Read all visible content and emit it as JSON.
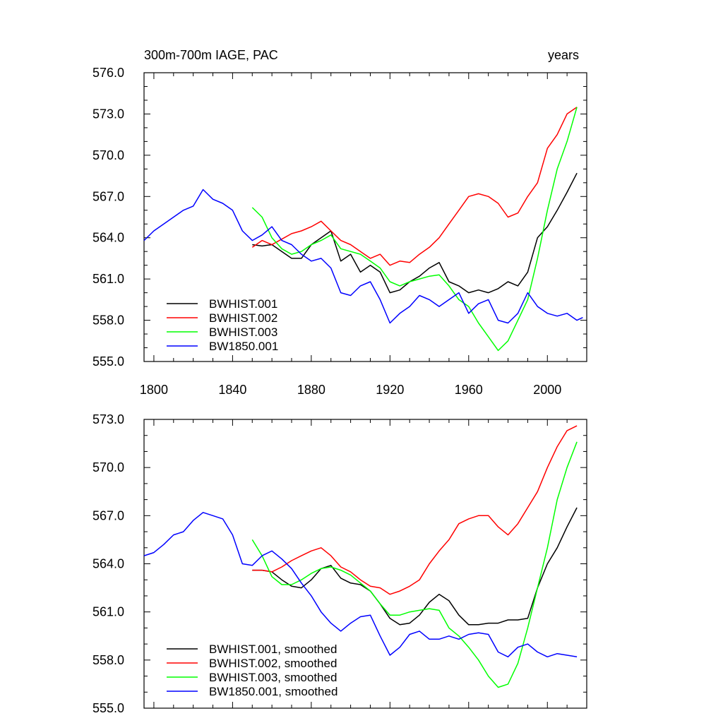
{
  "chart_data": [
    {
      "type": "line",
      "title": "300m-700m IAGE, PAC",
      "units_label": "years",
      "xlim": [
        1795,
        2020
      ],
      "ylim": [
        555.0,
        576.0
      ],
      "x_ticks": [
        1800,
        1840,
        1880,
        1920,
        1960,
        2000
      ],
      "x_tick_labels": [
        "1800",
        "1840",
        "1880",
        "1920",
        "1960",
        "2000"
      ],
      "y_ticks": [
        555.0,
        558.0,
        561.0,
        564.0,
        567.0,
        570.0,
        573.0,
        576.0
      ],
      "y_tick_labels": [
        "555.0",
        "558.0",
        "561.0",
        "564.0",
        "567.0",
        "570.0",
        "573.0",
        "576.0"
      ],
      "legend_position": "bottom-left",
      "series": [
        {
          "name": "BWHIST.001",
          "color": "#000000",
          "x": [
            1850,
            1855,
            1860,
            1865,
            1870,
            1875,
            1880,
            1885,
            1890,
            1895,
            1900,
            1905,
            1910,
            1915,
            1920,
            1925,
            1930,
            1935,
            1940,
            1945,
            1950,
            1955,
            1960,
            1965,
            1970,
            1975,
            1980,
            1985,
            1990,
            1995,
            2000,
            2005,
            2010,
            2015
          ],
          "y": [
            563.5,
            563.4,
            563.5,
            563.0,
            562.5,
            562.5,
            563.5,
            564.0,
            564.5,
            562.3,
            562.8,
            561.5,
            562.0,
            561.5,
            560.0,
            560.2,
            560.8,
            561.2,
            561.8,
            562.2,
            560.8,
            560.5,
            560.0,
            560.2,
            560.0,
            560.3,
            560.8,
            560.5,
            561.5,
            564.0,
            564.8,
            566.0,
            567.3,
            568.7
          ]
        },
        {
          "name": "BWHIST.002",
          "color": "#ff0000",
          "x": [
            1850,
            1855,
            1860,
            1865,
            1870,
            1875,
            1880,
            1885,
            1890,
            1895,
            1900,
            1905,
            1910,
            1915,
            1920,
            1925,
            1930,
            1935,
            1940,
            1945,
            1950,
            1955,
            1960,
            1965,
            1970,
            1975,
            1980,
            1985,
            1990,
            1995,
            2000,
            2005,
            2010,
            2015
          ],
          "y": [
            563.3,
            563.8,
            563.5,
            563.9,
            564.3,
            564.5,
            564.8,
            565.2,
            564.5,
            563.8,
            563.5,
            563.0,
            562.5,
            562.8,
            562.0,
            562.3,
            562.2,
            562.8,
            563.3,
            564.0,
            565.0,
            566.0,
            567.0,
            567.2,
            567.0,
            566.5,
            565.5,
            565.8,
            567.0,
            568.0,
            570.5,
            571.5,
            573.0,
            573.5
          ]
        },
        {
          "name": "BWHIST.003",
          "color": "#00ff00",
          "x": [
            1850,
            1855,
            1860,
            1865,
            1870,
            1875,
            1880,
            1885,
            1890,
            1895,
            1900,
            1905,
            1910,
            1915,
            1920,
            1925,
            1930,
            1935,
            1940,
            1945,
            1950,
            1955,
            1960,
            1965,
            1970,
            1975,
            1980,
            1985,
            1990,
            1995,
            2000,
            2005,
            2010,
            2015
          ],
          "y": [
            566.2,
            565.5,
            564.0,
            563.2,
            562.8,
            563.0,
            563.5,
            563.8,
            564.2,
            563.2,
            563.0,
            562.8,
            562.3,
            561.8,
            560.8,
            560.5,
            560.8,
            561.0,
            561.2,
            561.3,
            560.5,
            559.5,
            559.0,
            557.8,
            556.8,
            555.8,
            556.5,
            558.0,
            559.5,
            562.5,
            566.0,
            569.0,
            571.0,
            573.5
          ]
        },
        {
          "name": "BW1850.001",
          "color": "#0000ff",
          "x": [
            1795,
            1800,
            1805,
            1810,
            1815,
            1820,
            1825,
            1830,
            1835,
            1840,
            1845,
            1850,
            1855,
            1860,
            1865,
            1870,
            1875,
            1880,
            1885,
            1890,
            1895,
            1900,
            1905,
            1910,
            1915,
            1920,
            1925,
            1930,
            1935,
            1940,
            1945,
            1950,
            1955,
            1960,
            1965,
            1970,
            1975,
            1980,
            1985,
            1990,
            1995,
            2000,
            2005,
            2010,
            2015,
            2018
          ],
          "y": [
            563.8,
            564.5,
            565.0,
            565.5,
            566.0,
            566.3,
            567.5,
            566.8,
            566.5,
            566.0,
            564.5,
            563.8,
            564.2,
            564.8,
            563.8,
            563.5,
            562.8,
            562.3,
            562.5,
            561.8,
            560.0,
            559.8,
            560.5,
            560.8,
            559.5,
            557.8,
            558.5,
            559.0,
            559.8,
            559.5,
            559.0,
            559.5,
            560.0,
            558.5,
            559.2,
            559.5,
            558.0,
            557.8,
            558.5,
            560.0,
            559.0,
            558.5,
            558.3,
            558.5,
            558.0,
            558.2
          ]
        }
      ]
    },
    {
      "type": "line",
      "title": "",
      "xlim": [
        1795,
        2020
      ],
      "ylim": [
        555.0,
        573.0
      ],
      "x_ticks": [
        1800,
        1840,
        1880,
        1920,
        1960,
        2000
      ],
      "x_tick_labels": [],
      "y_ticks": [
        555.0,
        558.0,
        561.0,
        564.0,
        567.0,
        570.0,
        573.0
      ],
      "y_tick_labels": [
        "555.0",
        "558.0",
        "561.0",
        "564.0",
        "567.0",
        "570.0",
        "573.0"
      ],
      "legend_position": "bottom-left",
      "series": [
        {
          "name": "BWHIST.001, smoothed",
          "color": "#000000",
          "x": [
            1850,
            1855,
            1860,
            1865,
            1870,
            1875,
            1880,
            1885,
            1890,
            1895,
            1900,
            1905,
            1910,
            1915,
            1920,
            1925,
            1930,
            1935,
            1940,
            1945,
            1950,
            1955,
            1960,
            1965,
            1970,
            1975,
            1980,
            1985,
            1990,
            1995,
            2000,
            2005,
            2010,
            2015
          ],
          "y": [
            563.6,
            563.6,
            563.5,
            563.0,
            562.6,
            562.5,
            563.0,
            563.7,
            563.9,
            563.1,
            562.8,
            562.7,
            562.3,
            561.5,
            560.6,
            560.2,
            560.3,
            560.8,
            561.6,
            562.1,
            561.7,
            560.8,
            560.2,
            560.2,
            560.3,
            560.3,
            560.5,
            560.5,
            560.6,
            562.5,
            564.0,
            565.0,
            566.3,
            567.5
          ]
        },
        {
          "name": "BWHIST.002, smoothed",
          "color": "#ff0000",
          "x": [
            1850,
            1855,
            1860,
            1865,
            1870,
            1875,
            1880,
            1885,
            1890,
            1895,
            1900,
            1905,
            1910,
            1915,
            1920,
            1925,
            1930,
            1935,
            1940,
            1945,
            1950,
            1955,
            1960,
            1965,
            1970,
            1975,
            1980,
            1985,
            1990,
            1995,
            2000,
            2005,
            2010,
            2015
          ],
          "y": [
            563.6,
            563.6,
            563.5,
            563.8,
            564.2,
            564.5,
            564.8,
            565.0,
            564.5,
            563.8,
            563.5,
            563.0,
            562.6,
            562.5,
            562.1,
            562.3,
            562.6,
            563.0,
            564.0,
            564.8,
            565.5,
            566.5,
            566.8,
            567.0,
            567.0,
            566.3,
            565.8,
            566.5,
            567.5,
            568.5,
            570.0,
            571.3,
            572.3,
            572.6
          ]
        },
        {
          "name": "BWHIST.003, smoothed",
          "color": "#00ff00",
          "x": [
            1850,
            1855,
            1860,
            1865,
            1870,
            1875,
            1880,
            1885,
            1890,
            1895,
            1900,
            1905,
            1910,
            1915,
            1920,
            1925,
            1930,
            1935,
            1940,
            1945,
            1950,
            1955,
            1960,
            1965,
            1970,
            1975,
            1980,
            1985,
            1990,
            1995,
            2000,
            2005,
            2010,
            2015
          ],
          "y": [
            565.5,
            564.5,
            563.2,
            562.7,
            562.7,
            563.0,
            563.4,
            563.7,
            563.8,
            563.6,
            563.3,
            562.8,
            562.3,
            561.5,
            560.8,
            560.8,
            561.0,
            561.1,
            561.2,
            561.1,
            560.0,
            559.5,
            558.8,
            558.0,
            557.0,
            556.3,
            556.5,
            557.8,
            560.0,
            562.5,
            565.0,
            568.0,
            570.0,
            571.6
          ]
        },
        {
          "name": "BW1850.001, smoothed",
          "color": "#0000ff",
          "x": [
            1795,
            1800,
            1805,
            1810,
            1815,
            1820,
            1825,
            1830,
            1835,
            1840,
            1845,
            1850,
            1855,
            1860,
            1865,
            1870,
            1875,
            1880,
            1885,
            1890,
            1895,
            1900,
            1905,
            1910,
            1915,
            1920,
            1925,
            1930,
            1935,
            1940,
            1945,
            1950,
            1955,
            1960,
            1965,
            1970,
            1975,
            1980,
            1985,
            1990,
            1995,
            2000,
            2005,
            2010,
            2015
          ],
          "y": [
            564.5,
            564.7,
            565.2,
            565.8,
            566.0,
            566.7,
            567.2,
            567.0,
            566.8,
            565.8,
            564.0,
            563.9,
            564.5,
            564.8,
            564.3,
            563.7,
            562.8,
            562.0,
            561.0,
            560.3,
            559.8,
            560.3,
            560.7,
            560.8,
            559.5,
            558.3,
            558.8,
            559.6,
            559.8,
            559.3,
            559.3,
            559.5,
            559.3,
            559.6,
            559.7,
            559.6,
            558.5,
            558.2,
            558.8,
            559.0,
            558.5,
            558.2,
            558.4,
            558.3,
            558.2
          ]
        }
      ]
    }
  ]
}
